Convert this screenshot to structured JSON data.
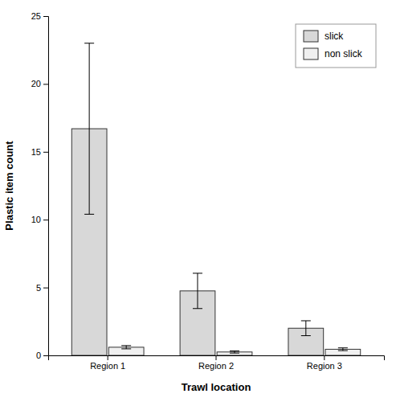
{
  "chart_data": {
    "type": "bar",
    "xlabel": "Trawl location",
    "ylabel": "Plastic item count",
    "categories": [
      "Region 1",
      "Region 2",
      "Region 3"
    ],
    "series": [
      {
        "name": "slick",
        "color": "#d8d8d8",
        "values": [
          16.7,
          4.75,
          2.0
        ],
        "errors": [
          6.3,
          1.3,
          0.55
        ]
      },
      {
        "name": "non slick",
        "color": "#f0f0f0",
        "values": [
          0.6,
          0.25,
          0.45
        ],
        "errors": [
          0.12,
          0.08,
          0.1
        ]
      }
    ],
    "ylim": [
      0,
      25
    ],
    "yticks": [
      0,
      5,
      10,
      15,
      20,
      25
    ],
    "grid": false,
    "legend": "upper right"
  }
}
